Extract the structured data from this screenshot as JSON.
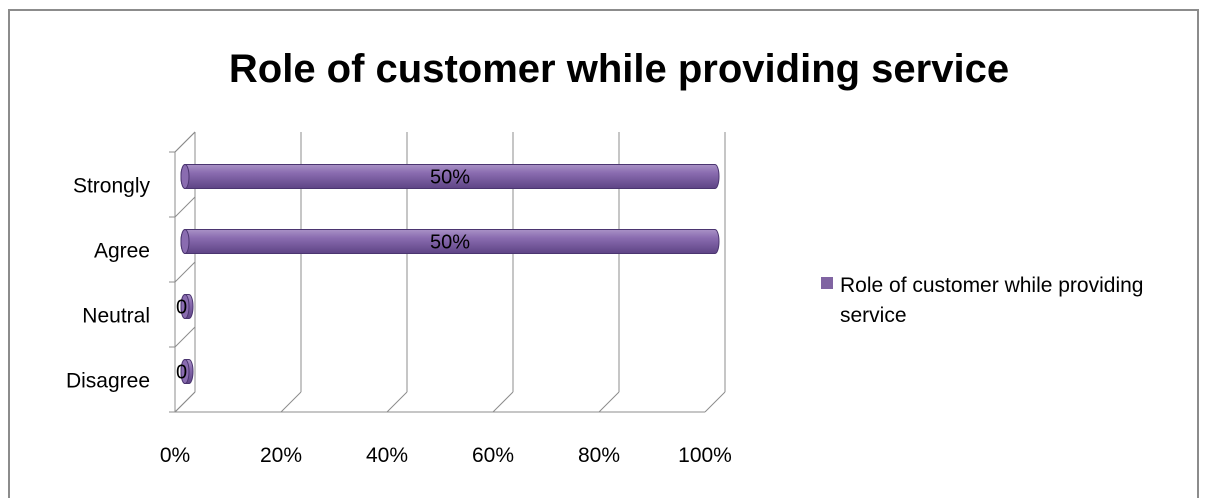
{
  "chart_data": {
    "type": "bar",
    "orientation": "horizontal",
    "three_d": true,
    "title": "Role of customer while providing service",
    "categories": [
      "Strongly",
      "Agree",
      "Neutral",
      "Disagree"
    ],
    "series": [
      {
        "name": "Role of customer while providing service",
        "values": [
          1.0,
          1.0,
          0,
          0
        ],
        "data_labels": [
          "50%",
          "50%",
          "0",
          "0"
        ],
        "color": "#8064a2"
      }
    ],
    "x_ticks": [
      "0%",
      "20%",
      "40%",
      "60%",
      "80%",
      "100%"
    ],
    "xlim": [
      0,
      1
    ],
    "grid": true,
    "legend_position": "right"
  }
}
